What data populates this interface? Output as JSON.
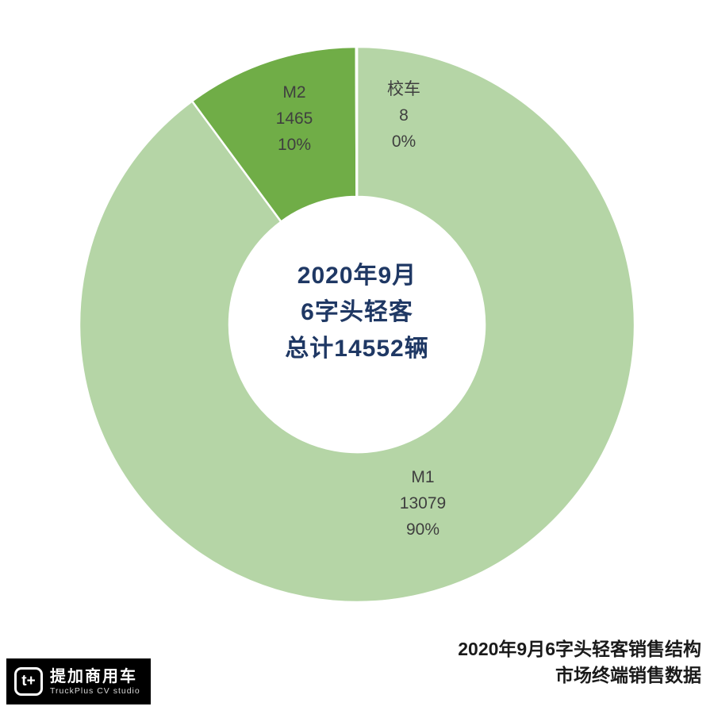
{
  "chart_data": {
    "type": "pie",
    "subtype": "donut",
    "title": "2020年9月6字头轻客销售结构",
    "categories": [
      "M1",
      "M2",
      "校车"
    ],
    "values": [
      13079,
      1465,
      8
    ],
    "total": 14552,
    "percent_labels": [
      "90%",
      "10%",
      "0%"
    ],
    "colors": [
      "#b5d5a6",
      "#70ad47",
      "#ffffff"
    ],
    "start_angle_deg": 0,
    "direction": "clockwise",
    "donut_hole_ratio": 0.46,
    "slice_border_color": "#ffffff",
    "legend_position": "none",
    "center_text": [
      "2020年9月",
      "6字头轻客",
      "总计14552辆"
    ]
  },
  "center_label": {
    "line1": "2020年9月",
    "line2": "6字头轻客",
    "line3": "总计14552辆",
    "color": "#1f3864"
  },
  "slice_labels": {
    "m1": {
      "name": "M1",
      "value": "13079",
      "pct": "90%"
    },
    "m2": {
      "name": "M2",
      "value": "1465",
      "pct": "10%"
    },
    "xiaoche": {
      "name": "校车",
      "value": "8",
      "pct": "0%"
    }
  },
  "footer": {
    "title_line1": "2020年9月6字头轻客销售结构",
    "title_line2": "市场终端销售数据"
  },
  "logo": {
    "icon": "t+",
    "name": "提加商用车",
    "subtitle": "TruckPlus CV studio"
  }
}
